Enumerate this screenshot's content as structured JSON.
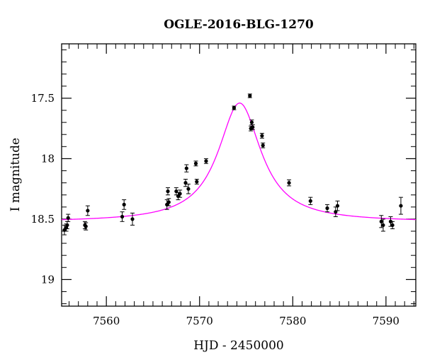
{
  "chart_data": {
    "type": "scatter",
    "title": "OGLE-2016-BLG-1270",
    "xlabel": "HJD - 2450000",
    "ylabel": "I magnitude",
    "xlim": [
      7555.2,
      7593.2
    ],
    "ylim": [
      19.22,
      17.05
    ],
    "y_inverted": true,
    "x_ticks": [
      7560,
      7570,
      7580,
      7590
    ],
    "y_ticks": [
      17.5,
      18,
      18.5,
      19
    ],
    "x_tick_labels": [
      "7560",
      "7570",
      "7580",
      "7590"
    ],
    "y_tick_labels": [
      "17.5",
      "18",
      "18.5",
      "19"
    ],
    "grid": false,
    "colors": {
      "model": "#ff00ff",
      "points": "#000000",
      "axes": "#000000"
    },
    "model": {
      "t0": 7574.3,
      "peak_mag": 17.54,
      "baseline_mag": 18.525,
      "width": 2.8
    },
    "points": [
      {
        "x": 7555.5,
        "y": 18.59,
        "err": 0.04
      },
      {
        "x": 7555.7,
        "y": 18.57,
        "err": 0.03
      },
      {
        "x": 7555.9,
        "y": 18.49,
        "err": 0.03
      },
      {
        "x": 7555.8,
        "y": 18.55,
        "err": 0.03
      },
      {
        "x": 7557.7,
        "y": 18.55,
        "err": 0.03
      },
      {
        "x": 7557.8,
        "y": 18.56,
        "err": 0.03
      },
      {
        "x": 7558.0,
        "y": 18.43,
        "err": 0.04
      },
      {
        "x": 7561.7,
        "y": 18.48,
        "err": 0.04
      },
      {
        "x": 7561.9,
        "y": 18.38,
        "err": 0.04
      },
      {
        "x": 7562.8,
        "y": 18.5,
        "err": 0.05
      },
      {
        "x": 7566.5,
        "y": 18.38,
        "err": 0.04
      },
      {
        "x": 7566.7,
        "y": 18.36,
        "err": 0.03
      },
      {
        "x": 7566.6,
        "y": 18.27,
        "err": 0.03
      },
      {
        "x": 7567.5,
        "y": 18.27,
        "err": 0.03
      },
      {
        "x": 7567.7,
        "y": 18.31,
        "err": 0.03
      },
      {
        "x": 7567.9,
        "y": 18.29,
        "err": 0.03
      },
      {
        "x": 7568.5,
        "y": 18.2,
        "err": 0.03
      },
      {
        "x": 7568.6,
        "y": 18.08,
        "err": 0.03
      },
      {
        "x": 7568.8,
        "y": 18.25,
        "err": 0.04
      },
      {
        "x": 7569.6,
        "y": 18.04,
        "err": 0.02
      },
      {
        "x": 7569.7,
        "y": 18.19,
        "err": 0.02
      },
      {
        "x": 7570.7,
        "y": 18.02,
        "err": 0.02
      },
      {
        "x": 7573.7,
        "y": 17.58,
        "err": 0.015
      },
      {
        "x": 7575.4,
        "y": 17.48,
        "err": 0.015
      },
      {
        "x": 7575.5,
        "y": 17.75,
        "err": 0.02
      },
      {
        "x": 7575.7,
        "y": 17.74,
        "err": 0.02
      },
      {
        "x": 7575.6,
        "y": 17.7,
        "err": 0.02
      },
      {
        "x": 7576.7,
        "y": 17.81,
        "err": 0.02
      },
      {
        "x": 7576.8,
        "y": 17.89,
        "err": 0.02
      },
      {
        "x": 7579.6,
        "y": 18.2,
        "err": 0.025
      },
      {
        "x": 7581.9,
        "y": 18.35,
        "err": 0.03
      },
      {
        "x": 7583.7,
        "y": 18.41,
        "err": 0.03
      },
      {
        "x": 7584.6,
        "y": 18.44,
        "err": 0.04
      },
      {
        "x": 7584.8,
        "y": 18.39,
        "err": 0.04
      },
      {
        "x": 7589.5,
        "y": 18.52,
        "err": 0.05
      },
      {
        "x": 7589.7,
        "y": 18.55,
        "err": 0.05
      },
      {
        "x": 7590.5,
        "y": 18.52,
        "err": 0.04
      },
      {
        "x": 7590.7,
        "y": 18.55,
        "err": 0.03
      },
      {
        "x": 7591.6,
        "y": 18.39,
        "err": 0.07
      }
    ]
  }
}
